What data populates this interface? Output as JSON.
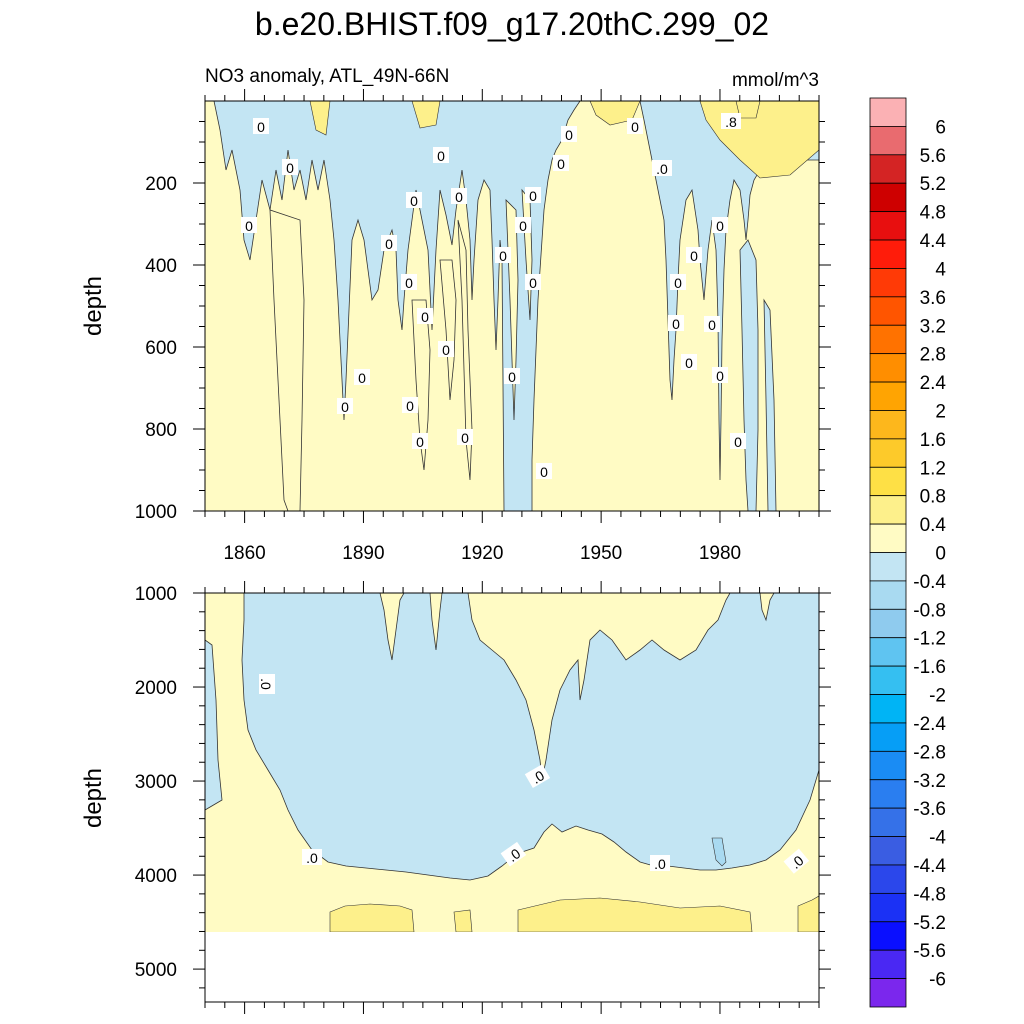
{
  "title": "b.e20.BHIST.f09_g17.20thC.299_02",
  "chart_data": [
    {
      "type": "heatmap",
      "panel": "upper",
      "subtitle_left": "NO3 anomaly, ATL_49N-66N",
      "subtitle_right": "mmol/m^3",
      "xlabel": "",
      "ylabel": "depth",
      "x_ticks": [
        "1860",
        "1890",
        "1920",
        "1950",
        "1980"
      ],
      "y_ticks": [
        "200",
        "400",
        "600",
        "800",
        "1000"
      ],
      "xlim": [
        1850,
        2005
      ],
      "ylim": [
        1000,
        0
      ],
      "contour_labels": [
        "0",
        "0",
        "0",
        "0",
        "0",
        "0",
        "0",
        "0",
        "0",
        "0",
        "0",
        "0",
        "0",
        "0",
        "0",
        "0",
        "0",
        "0",
        "0",
        "0",
        "0",
        "0",
        "0",
        "0",
        "0",
        "0",
        "0",
        ".8",
        ".0"
      ]
    },
    {
      "type": "heatmap",
      "panel": "lower",
      "xlabel": "",
      "ylabel": "depth",
      "y_ticks": [
        "1000",
        "2000",
        "3000",
        "4000",
        "5000"
      ],
      "xlim": [
        1850,
        2005
      ],
      "ylim": [
        5350,
        1000
      ],
      "contour_labels": [
        ".0",
        ".0",
        ".0",
        ".0",
        ".0",
        ".0"
      ]
    }
  ],
  "colorbar": {
    "labels": [
      "6",
      "5.6",
      "5.2",
      "4.8",
      "4.4",
      "4",
      "3.6",
      "3.2",
      "2.8",
      "2.4",
      "2",
      "1.6",
      "1.2",
      "0.8",
      "0.4",
      "0",
      "-0.4",
      "-0.8",
      "-1.2",
      "-1.6",
      "-2",
      "-2.4",
      "-2.8",
      "-3.2",
      "-3.6",
      "-4",
      "-4.4",
      "-4.8",
      "-5.2",
      "-5.6",
      "-6"
    ],
    "colors": [
      "#FBB1B4",
      "#E96B6F",
      "#D42424",
      "#CE0000",
      "#E80F0F",
      "#FF1C0A",
      "#FF3A06",
      "#FF5500",
      "#FF7200",
      "#FF8E00",
      "#FFA402",
      "#FDB71C",
      "#FDCA2A",
      "#FEE045",
      "#FDF08B",
      "#FFFBC4",
      "#C3E5F3",
      "#A9DAF1",
      "#8FCBEE",
      "#5FC4F1",
      "#35BFF1",
      "#00B4F5",
      "#069EF6",
      "#1A8CF4",
      "#2A7EF0",
      "#3571E8",
      "#3A5DE2",
      "#2B47EB",
      "#1B31F5",
      "#0A0FFF",
      "#4A28F3",
      "#7B27ED"
    ]
  }
}
